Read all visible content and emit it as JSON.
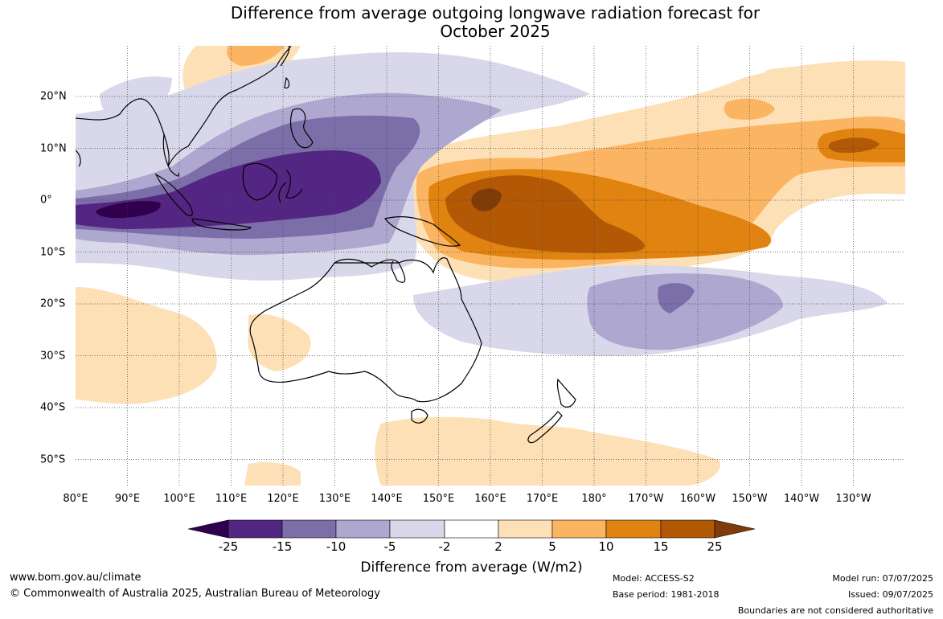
{
  "title": {
    "line1": "Difference from average outgoing longwave radiation forecast for",
    "line2": "October 2025"
  },
  "map": {
    "lon_labels": [
      "80°E",
      "90°E",
      "100°E",
      "110°E",
      "120°E",
      "130°E",
      "140°E",
      "150°E",
      "160°E",
      "170°E",
      "180°",
      "170°W",
      "160°W",
      "150°W",
      "140°W",
      "130°W"
    ],
    "lat_labels": [
      "20°N",
      "10°N",
      "0°",
      "10°S",
      "20°S",
      "30°S",
      "40°S",
      "50°S"
    ],
    "colors": {
      "neg25": "#30004e",
      "neg15": "#542683",
      "neg10": "#7c6ea9",
      "neg5": "#aea7d0",
      "neg2": "#d9d8ea",
      "neutral": "#ffffff",
      "pos2": "#fde0b6",
      "pos5": "#fbb562",
      "pos10": "#e08310",
      "pos15": "#b35906",
      "pos25": "#7f3b08"
    }
  },
  "colorbar": {
    "ticks": [
      "-25",
      "-15",
      "-10",
      "-5",
      "-2",
      "2",
      "5",
      "10",
      "15",
      "25"
    ],
    "title": "Difference from average (W/m2)"
  },
  "footer": {
    "url": "www.bom.gov.au/climate",
    "copyright": "© Commonwealth of Australia 2025, Australian Bureau of Meteorology",
    "model": "Model: ACCESS-S2",
    "base_period": "Base period: 1981-2018",
    "model_run": "Model run: 07/07/2025",
    "issued": "Issued: 09/07/2025",
    "disclaimer": "Boundaries are not considered authoritative"
  }
}
